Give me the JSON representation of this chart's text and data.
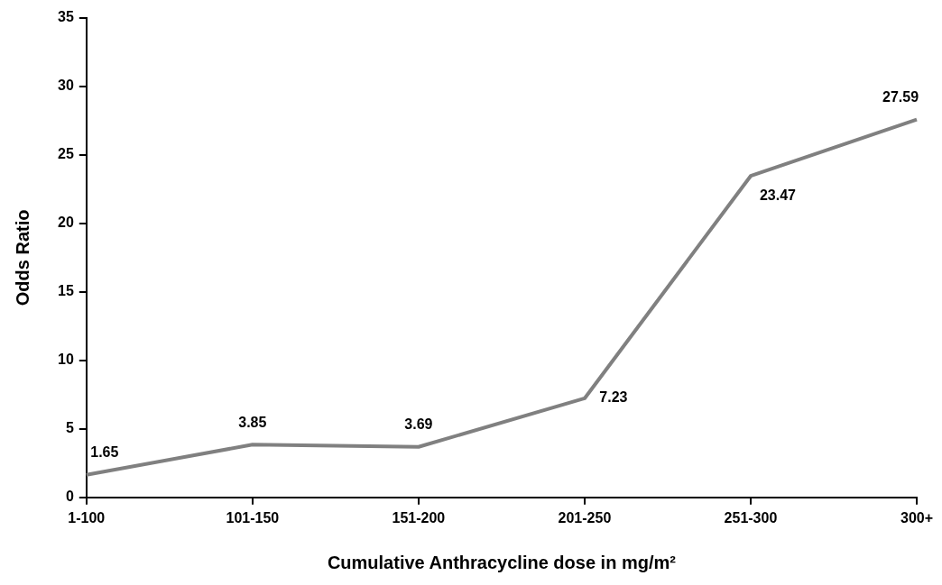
{
  "chart_data": {
    "type": "line",
    "xlabel": "Cumulative Anthracycline dose in mg/m²",
    "ylabel": "Odds Ratio",
    "categories": [
      "1-100",
      "101-150",
      "151-200",
      "201-250",
      "251-300",
      "300+"
    ],
    "series": [
      {
        "color": "#808080",
        "values": [
          1.65,
          3.85,
          3.69,
          7.23,
          23.47,
          27.59
        ]
      }
    ],
    "ylim": [
      0,
      35
    ],
    "yticks": [
      0,
      5,
      10,
      15,
      20,
      25,
      30,
      35
    ],
    "grid": false,
    "legend": false,
    "marker": "none",
    "line_style": "solid",
    "data_labels": true
  }
}
